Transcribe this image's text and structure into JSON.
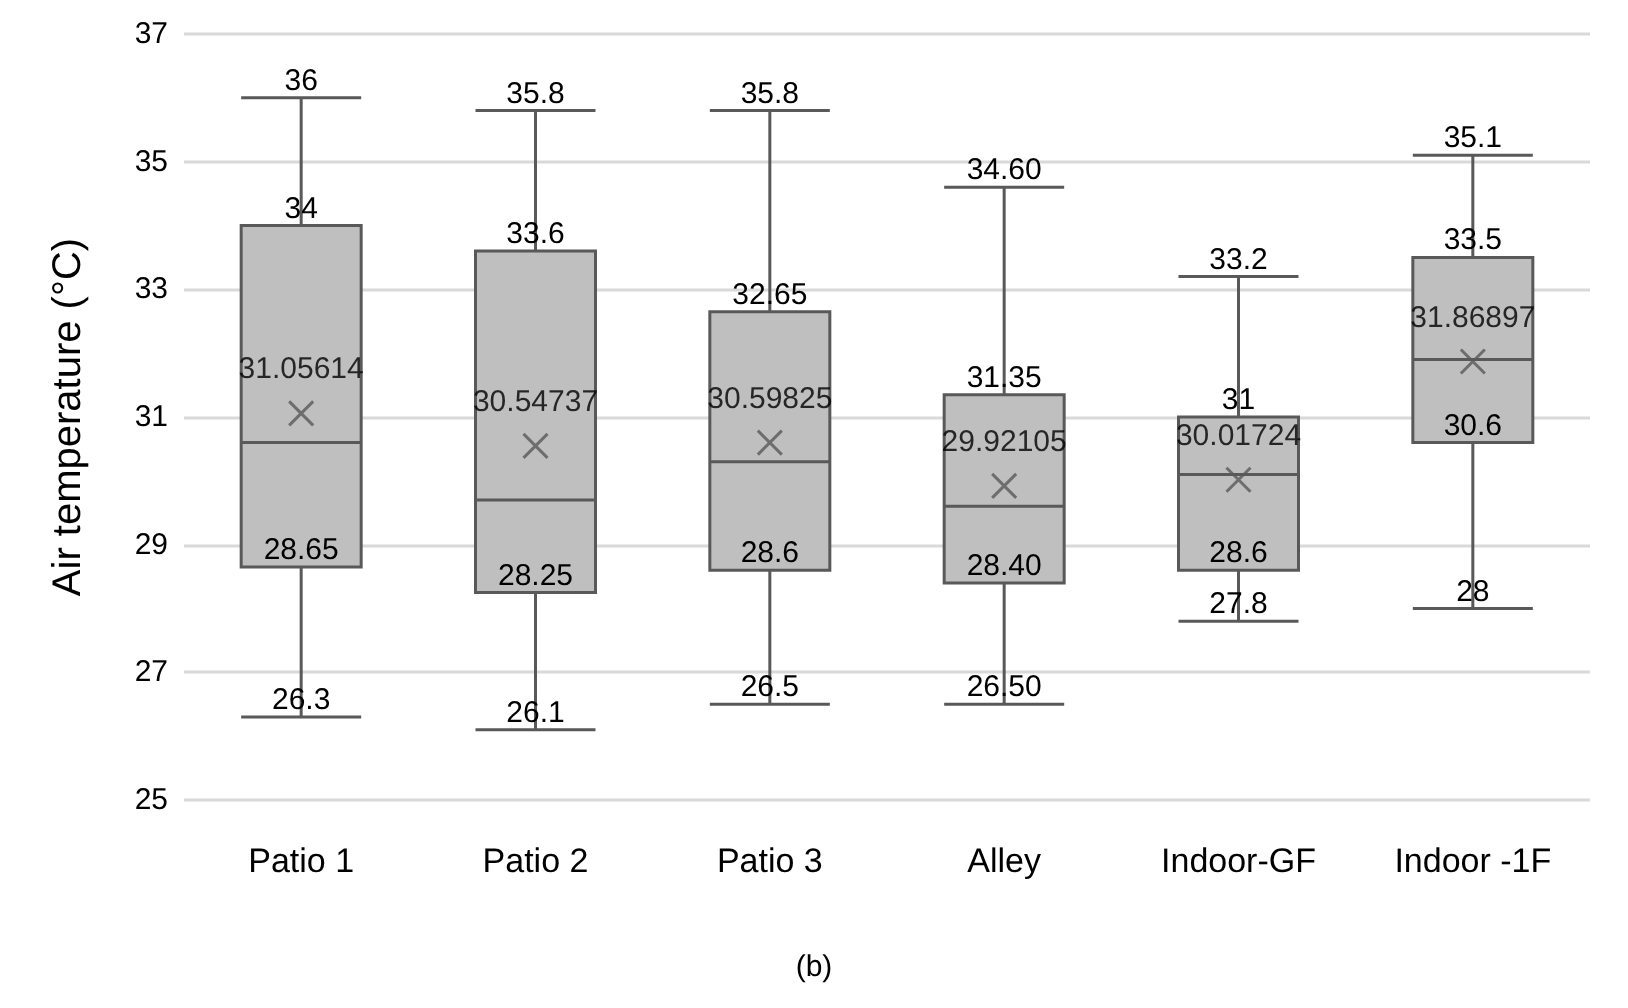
{
  "chart_data": {
    "type": "box",
    "ylabel": "Air temperature (°C)",
    "categories": [
      "Patio 1",
      "Patio 2",
      "Patio 3",
      "Alley",
      "Indoor-GF",
      "Indoor -1F"
    ],
    "series": [
      {
        "color": "#bfbfbf",
        "boxes": [
          {
            "low": 26.3,
            "q1": 28.65,
            "median": 30.6,
            "q3": 34,
            "high": 36
          },
          {
            "low": 26.1,
            "q1": 28.25,
            "median": 29.7,
            "q3": 33.6,
            "high": 35.8
          },
          {
            "low": 26.5,
            "q1": 28.6,
            "median": 30.3,
            "q3": 32.65,
            "high": 35.8
          },
          {
            "low": 26.5,
            "q1": 28.4,
            "median": 29.6,
            "q3": 31.35,
            "high": 34.6
          },
          {
            "low": 27.8,
            "q1": 28.6,
            "median": 30.1,
            "q3": 31,
            "high": 33.2
          },
          {
            "low": 28,
            "q1": 30.6,
            "median": 31.9,
            "q3": 33.5,
            "high": 35.1
          }
        ]
      },
      {
        "type": "scatter",
        "color": "#595959",
        "x": [
          "Patio 1",
          "Patio 2",
          "Patio 3",
          "Alley",
          "Indoor-GF",
          "Indoor -1F"
        ],
        "values": [
          31.05614,
          30.54737,
          30.59825,
          29.92105,
          30.01724,
          31.86897
        ],
        "value_labels": [
          "31.05614",
          "30.54737",
          "30.59825",
          "29.92105",
          "30.01724",
          "31.86897"
        ]
      }
    ],
    "ylim": [
      25,
      37
    ],
    "yticks": [
      25,
      27,
      29,
      31,
      33,
      35,
      37
    ],
    "grid": "y",
    "marker": "cross",
    "annotations": [
      {
        "text": "36",
        "x": "Patio 1",
        "y": 36
      },
      {
        "text": "34",
        "x": "Patio 1",
        "y": 34
      },
      {
        "text": "28.65",
        "x": "Patio 1",
        "y": 28.65
      },
      {
        "text": "26.3",
        "x": "Patio 1",
        "y": 26.3
      },
      {
        "text": "35.8",
        "x": "Patio 2",
        "y": 35.8
      },
      {
        "text": "33.6",
        "x": "Patio 2",
        "y": 33.6
      },
      {
        "text": "28.25",
        "x": "Patio 2",
        "y": 28.25
      },
      {
        "text": "26.1",
        "x": "Patio 2",
        "y": 26.1
      },
      {
        "text": "35.8",
        "x": "Patio 3",
        "y": 35.8
      },
      {
        "text": "32.65",
        "x": "Patio 3",
        "y": 32.65
      },
      {
        "text": "28.6",
        "x": "Patio 3",
        "y": 28.6
      },
      {
        "text": "26.5",
        "x": "Patio 3",
        "y": 26.5
      },
      {
        "text": "34.60",
        "x": "Alley",
        "y": 34.6
      },
      {
        "text": "31.35",
        "x": "Alley",
        "y": 31.35
      },
      {
        "text": "28.40",
        "x": "Alley",
        "y": 28.4
      },
      {
        "text": "26.50",
        "x": "Alley",
        "y": 26.5
      },
      {
        "text": "33.2",
        "x": "Indoor-GF",
        "y": 33.2
      },
      {
        "text": "31",
        "x": "Indoor-GF",
        "y": 31
      },
      {
        "text": "28.6",
        "x": "Indoor-GF",
        "y": 28.6
      },
      {
        "text": "27.8",
        "x": "Indoor-GF",
        "y": 27.8
      },
      {
        "text": "35.1",
        "x": "Indoor -1F",
        "y": 35.1
      },
      {
        "text": "33.5",
        "x": "Indoor -1F",
        "y": 33.5
      },
      {
        "text": "30.6",
        "x": "Indoor -1F",
        "y": 30.6
      },
      {
        "text": "28",
        "x": "Indoor -1F",
        "y": 28
      },
      "(b)"
    ]
  }
}
